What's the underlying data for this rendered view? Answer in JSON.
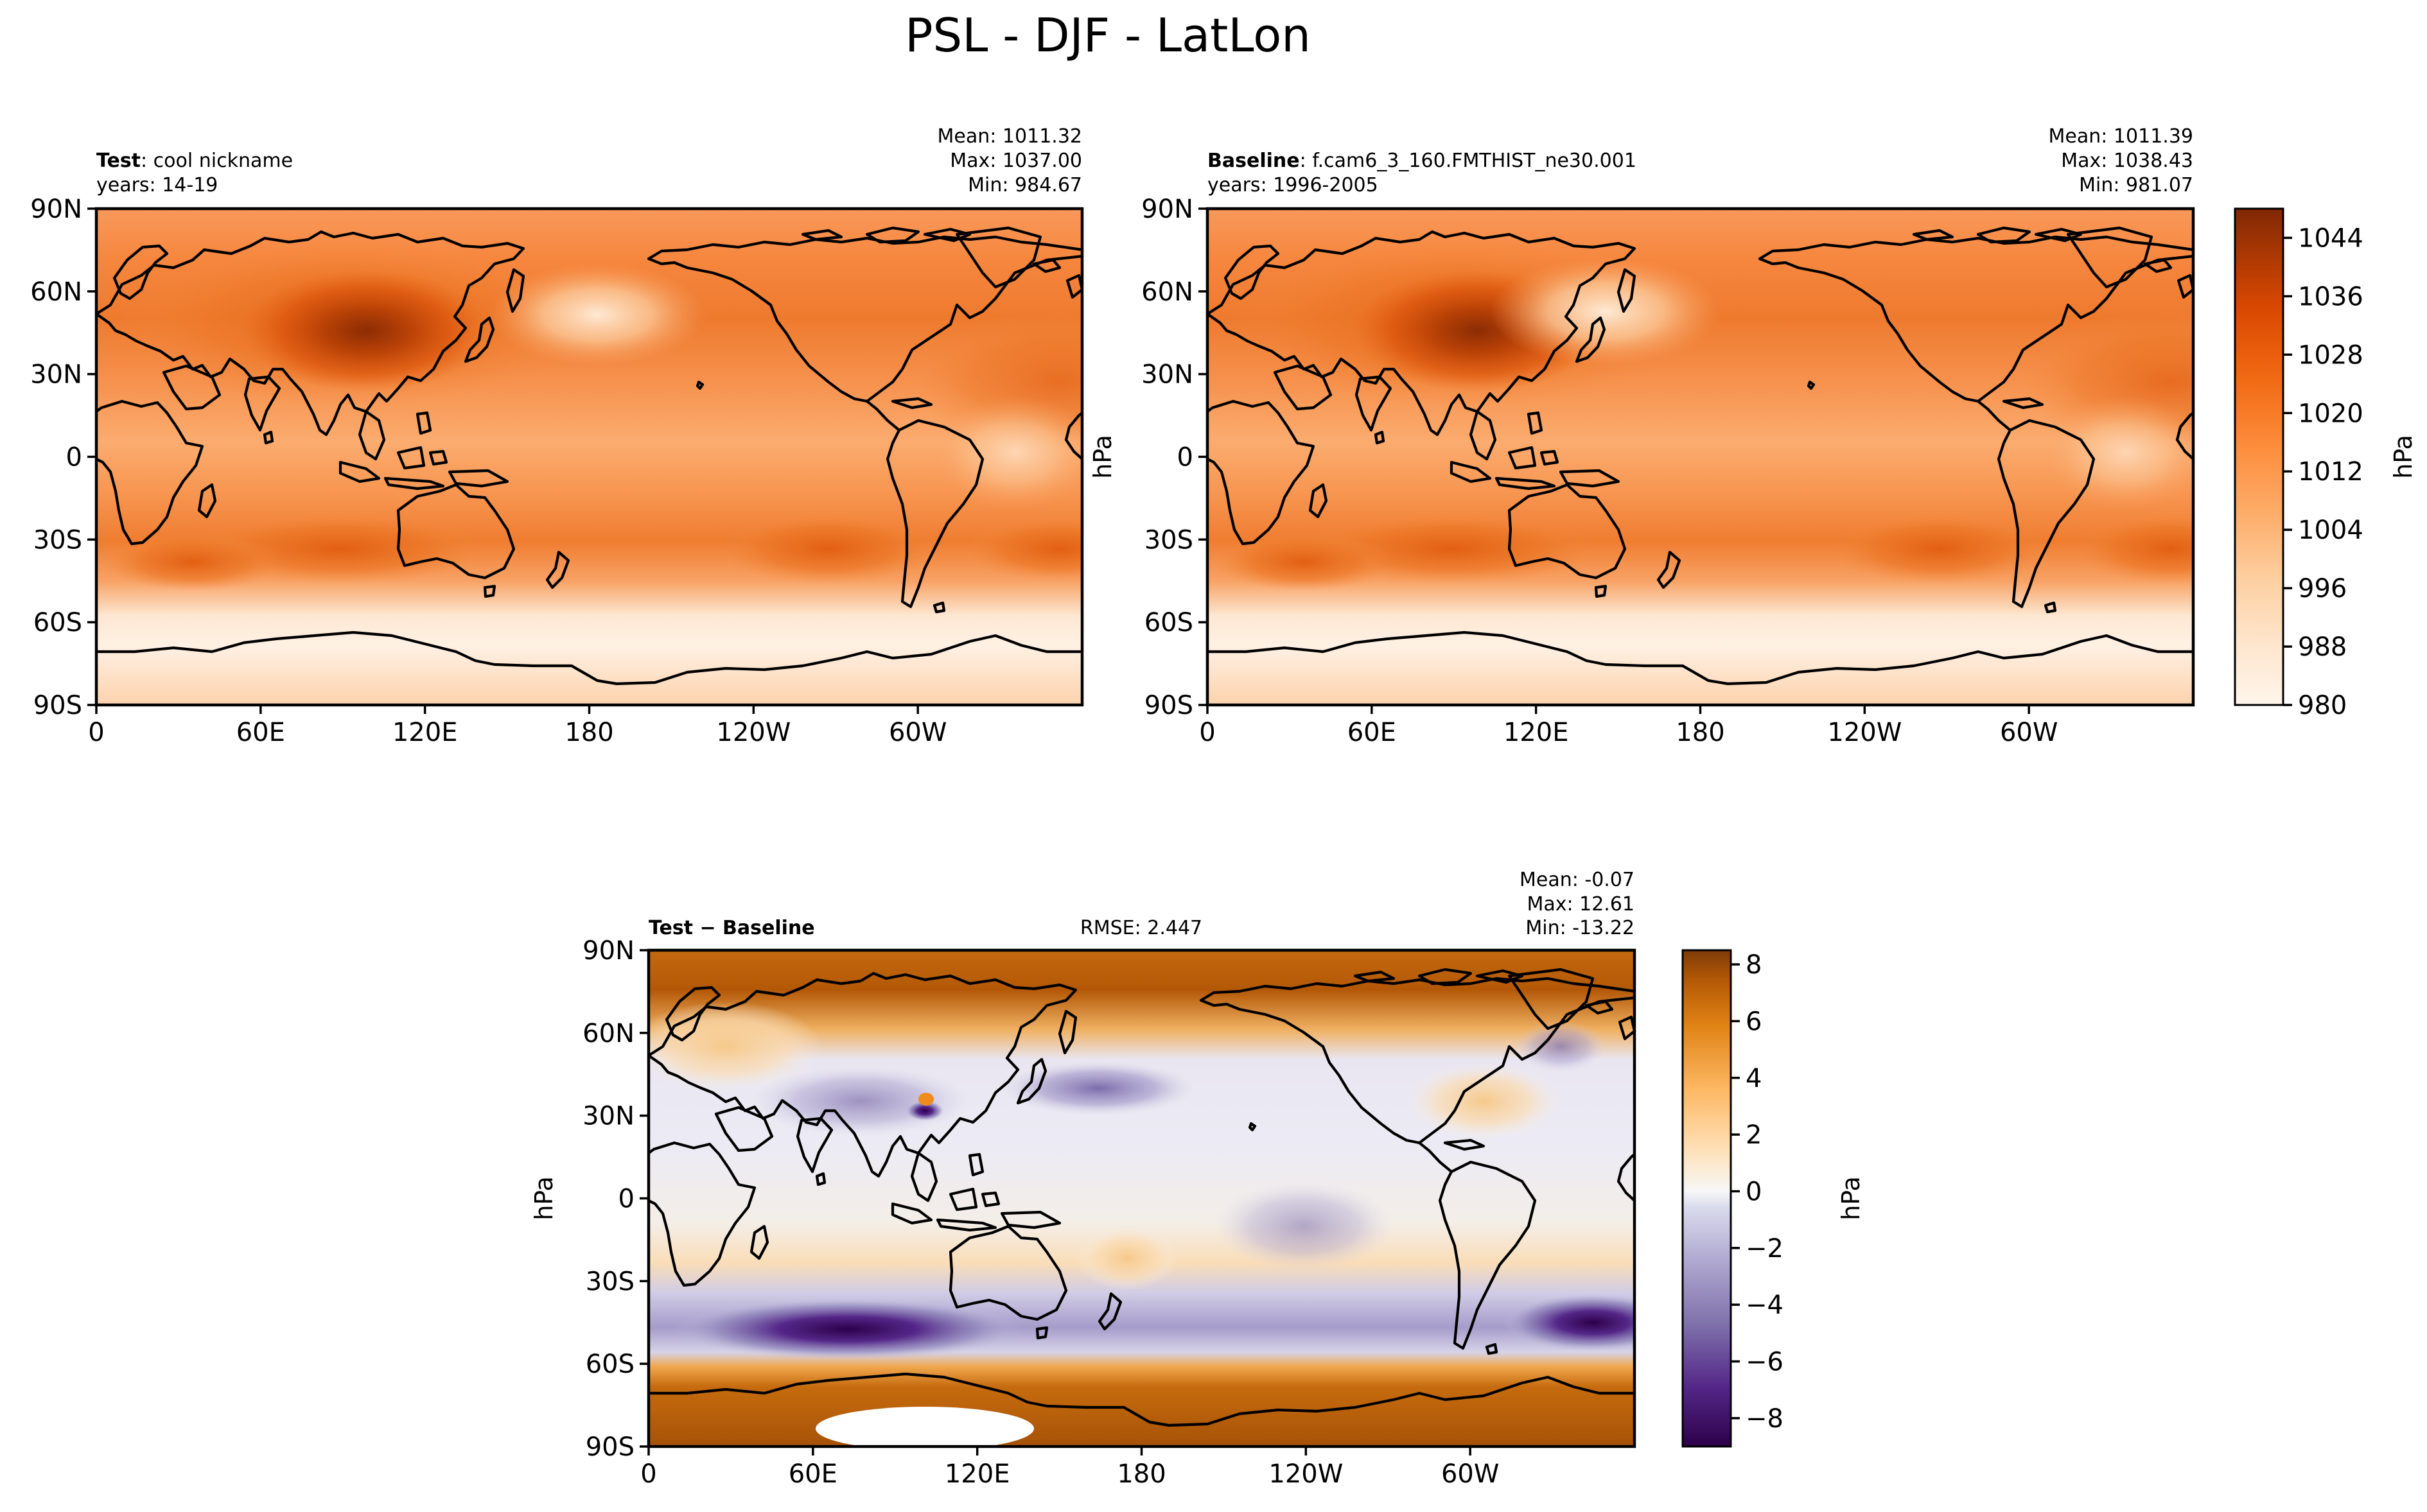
{
  "figure": {
    "title": "PSL - DJF - LatLon"
  },
  "panels": {
    "test": {
      "label_bold": "Test",
      "label_rest": ": cool nickname",
      "years": "years: 14-19",
      "mean": "Mean: 1011.32",
      "max": "Max: 1037.00",
      "min": "Min: 984.67"
    },
    "baseline": {
      "label_bold": "Baseline",
      "label_rest": ": f.cam6_3_160.FMTHIST_ne30.001",
      "years": "years: 1996-2005",
      "mean": "Mean: 1011.39",
      "max": "Max: 1038.43",
      "min": "Min: 981.07"
    },
    "diff": {
      "label": "Test − Baseline",
      "rmse": "RMSE: 2.447",
      "mean": "Mean: -0.07",
      "max": "Max: 12.61",
      "min": "Min: -13.22"
    }
  },
  "axes": {
    "lat_ticks": [
      "90N",
      "60N",
      "30N",
      "0",
      "30S",
      "60S",
      "90S"
    ],
    "lon_ticks": [
      "0",
      "60E",
      "120E",
      "180",
      "120W",
      "60W"
    ],
    "unit": "hPa"
  },
  "colorbars": {
    "main": {
      "label": "hPa",
      "ticks": [
        "1044",
        "1036",
        "1028",
        "1020",
        "1012",
        "1004",
        "996",
        "988",
        "980"
      ],
      "range": [
        980,
        1048
      ],
      "colormap": "Oranges"
    },
    "diff": {
      "label": "hPa",
      "ticks": [
        "8",
        "6",
        "4",
        "2",
        "0",
        "−2",
        "−4",
        "−6",
        "−8"
      ],
      "range": [
        -9,
        8.5
      ],
      "colormap": "PuOr_r"
    }
  },
  "chart_data": [
    {
      "type": "heatmap",
      "title": "Test: cool nickname",
      "subtitle": "years: 14-19",
      "variable": "PSL",
      "season": "DJF",
      "stats": {
        "mean": 1011.32,
        "max": 1037.0,
        "min": 984.67
      },
      "x_ticks": [
        "0",
        "60E",
        "120E",
        "180",
        "120W",
        "60W"
      ],
      "y_ticks": [
        "90N",
        "60N",
        "30N",
        "0",
        "30S",
        "60S",
        "90S"
      ],
      "xlim": [
        0,
        360
      ],
      "ylim": [
        -90,
        90
      ],
      "ylabel": "",
      "colorbar_label": "hPa",
      "colorbar_range": [
        980,
        1048
      ]
    },
    {
      "type": "heatmap",
      "title": "Baseline: f.cam6_3_160.FMTHIST_ne30.001",
      "subtitle": "years: 1996-2005",
      "variable": "PSL",
      "season": "DJF",
      "stats": {
        "mean": 1011.39,
        "max": 1038.43,
        "min": 981.07
      },
      "x_ticks": [
        "0",
        "60E",
        "120E",
        "180",
        "120W",
        "60W"
      ],
      "y_ticks": [
        "90N",
        "60N",
        "30N",
        "0",
        "30S",
        "60S",
        "90S"
      ],
      "xlim": [
        0,
        360
      ],
      "ylim": [
        -90,
        90
      ],
      "ylabel": "hPa",
      "colorbar_label": "hPa",
      "colorbar_range": [
        980,
        1048
      ]
    },
    {
      "type": "heatmap",
      "title": "Test − Baseline",
      "variable": "PSL",
      "season": "DJF",
      "stats": {
        "mean": -0.07,
        "max": 12.61,
        "min": -13.22,
        "rmse": 2.447
      },
      "x_ticks": [
        "0",
        "60E",
        "120E",
        "180",
        "120W",
        "60W"
      ],
      "y_ticks": [
        "90N",
        "60N",
        "30N",
        "0",
        "30S",
        "60S",
        "90S"
      ],
      "xlim": [
        0,
        360
      ],
      "ylim": [
        -90,
        90
      ],
      "ylabel": "hPa",
      "colorbar_label": "hPa",
      "colorbar_range": [
        -9,
        8.5
      ]
    }
  ]
}
